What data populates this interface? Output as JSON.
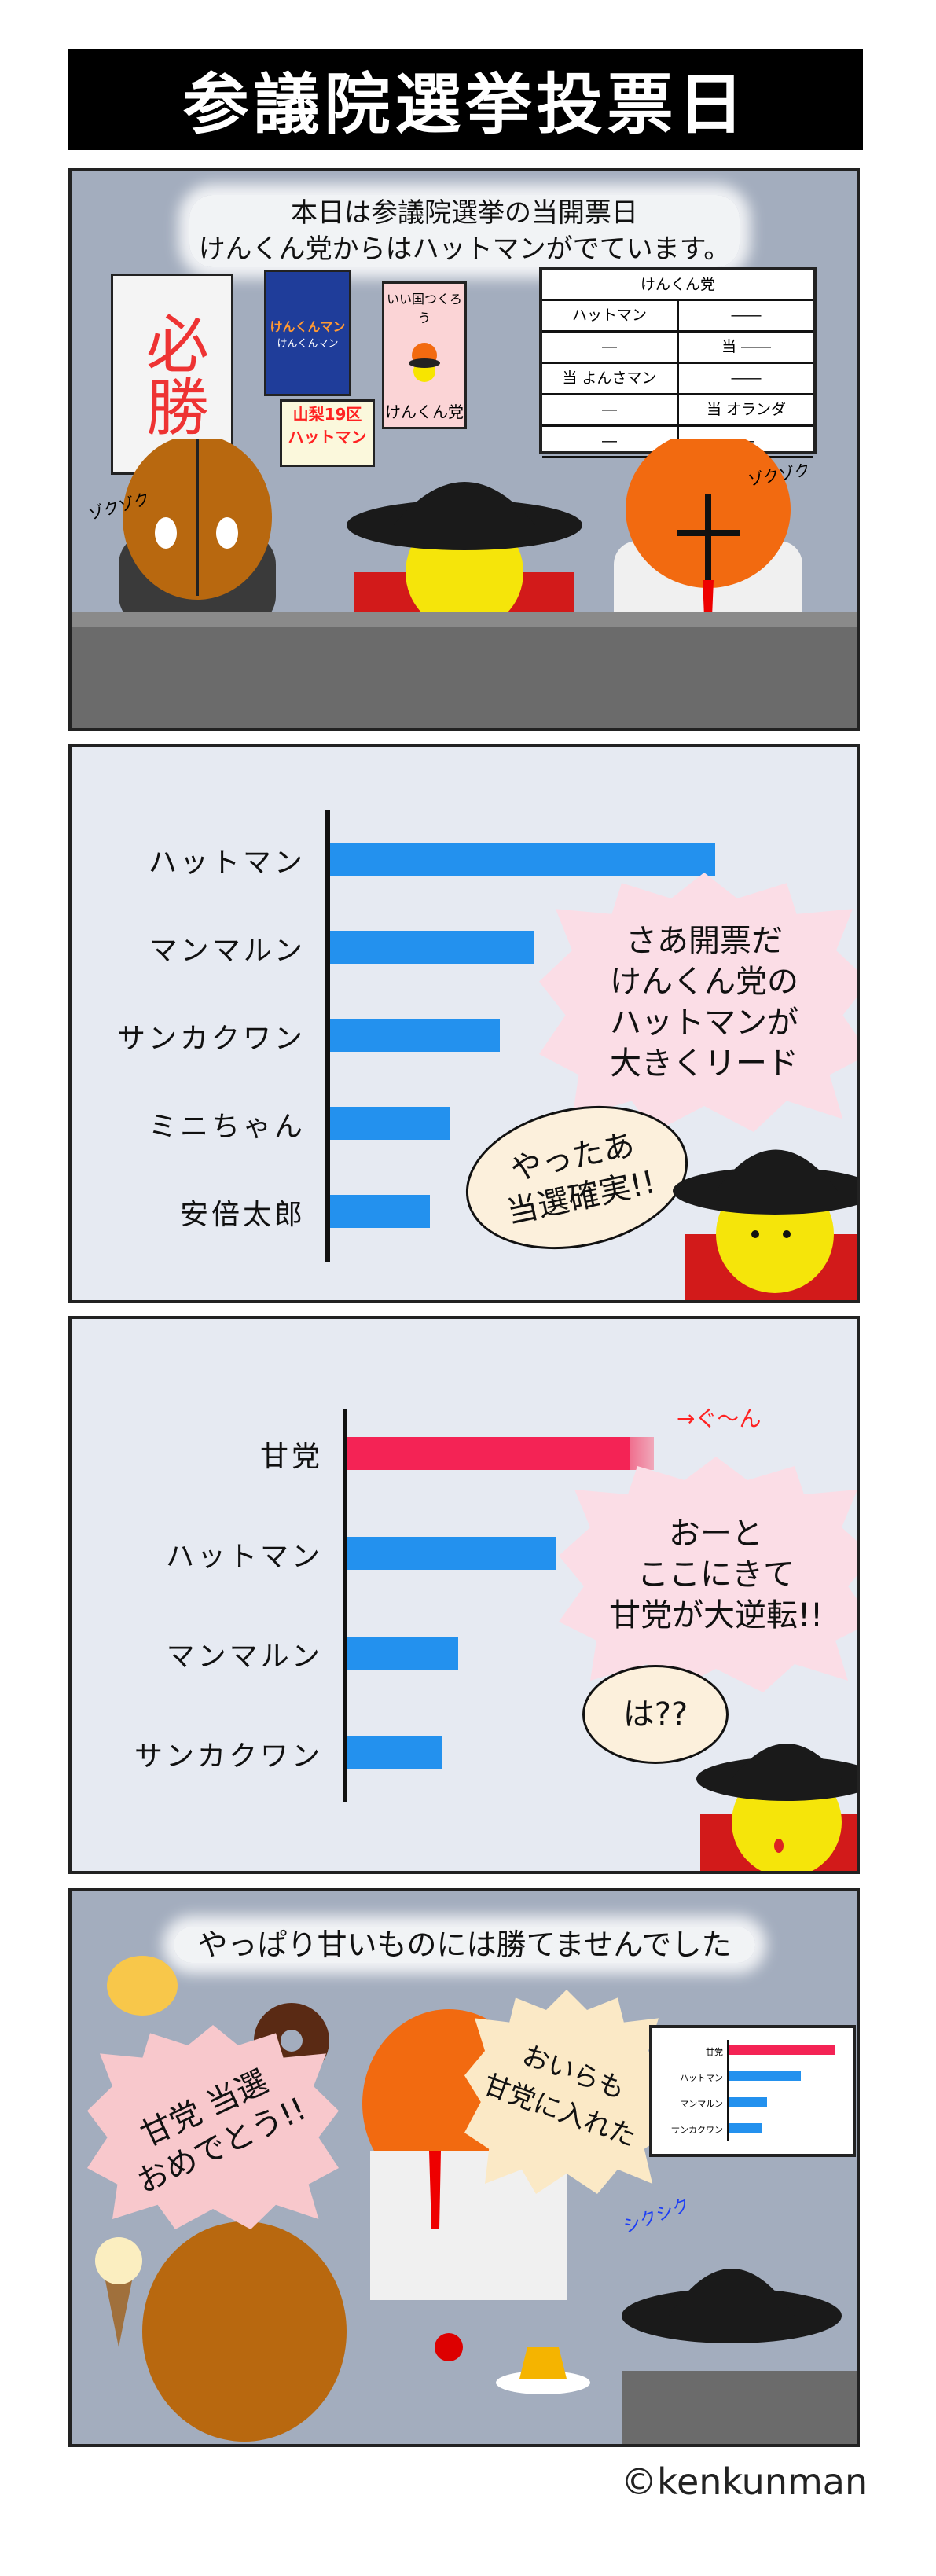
{
  "title": "参議院選挙投票日",
  "panel1": {
    "caption_line1": "本日は参議院選挙の当開票日",
    "caption_line2": "けんくん党からはハットマンがでています。",
    "poster_hissho": "必勝",
    "poster_kenkunman_logo": "けんくんマン",
    "poster_kenkunman_text": "けんくんマン",
    "poster_party_top": "いい国つくろう",
    "poster_party_bottom": "けんくん党",
    "poster_district_line1": "山梨19区",
    "poster_district_line2": "ハットマン",
    "board_header": "けんくん党",
    "board_rows": [
      {
        "left": "ハットマン",
        "right": "――"
      },
      {
        "left": "―",
        "right": "当 ――"
      },
      {
        "left": "当 よんさマン",
        "right": "――"
      },
      {
        "left": "―",
        "right": "当 オランダ"
      },
      {
        "left": "―",
        "right": "―"
      }
    ],
    "sfx_left": "ゾクゾク",
    "sfx_right": "ゾクゾク"
  },
  "panel2": {
    "speech_announcer": "さあ開票だ\nけんくん党の\nハットマンが\n大きくリード",
    "speech_hatman": "やったあ\n当選確実!!"
  },
  "panel3": {
    "surge_note": "→ぐ～ん",
    "speech_announcer": "おーと\nここにきて\n甘党が大逆転!!",
    "speech_hatman": "は??"
  },
  "panel4": {
    "caption": "やっぱり甘いものには勝てませんでした",
    "speech_left": "甘党 当選\nおめでとう!!",
    "speech_orange": "おいらも\n甘党に入れた",
    "sfx_crying": "シクシク",
    "mini_chart_labels": [
      "甘党",
      "ハットマン",
      "マンマルン",
      "サンカクワン"
    ]
  },
  "copyright": "©kenkunman",
  "chart_data": [
    {
      "type": "bar",
      "orientation": "horizontal",
      "categories": [
        "ハットマン",
        "マンマルン",
        "サンカクワン",
        "ミニちゃん",
        "安倍太郎"
      ],
      "values": [
        100,
        53,
        44,
        31,
        26
      ],
      "colors": [
        "#2391ee",
        "#2391ee",
        "#2391ee",
        "#2391ee",
        "#2391ee"
      ]
    },
    {
      "type": "bar",
      "orientation": "horizontal",
      "categories": [
        "甘党",
        "ハットマン",
        "マンマルン",
        "サンカクワン"
      ],
      "values": [
        84,
        62,
        33,
        28
      ],
      "growing_extension": 7,
      "colors": [
        "#f42355",
        "#2391ee",
        "#2391ee",
        "#2391ee"
      ]
    }
  ]
}
